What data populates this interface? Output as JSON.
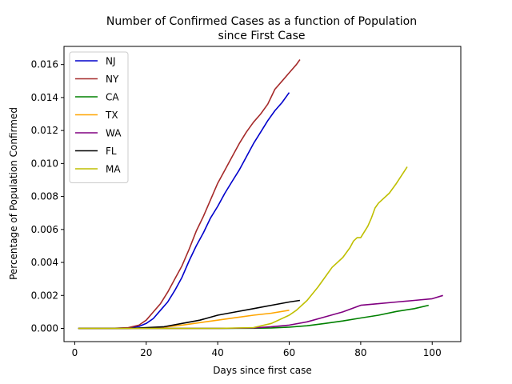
{
  "chart_data": {
    "type": "line",
    "title": "Number of Confirmed Cases as a function of Population",
    "subtitle": "since First Case",
    "xlabel": "Days since first case",
    "ylabel": "Percentage of Population Confirmed",
    "xlim": [
      -3,
      108
    ],
    "ylim": [
      -0.0008,
      0.0171
    ],
    "xticks": [
      0,
      20,
      40,
      60,
      80,
      100
    ],
    "xtick_labels": [
      "0",
      "20",
      "40",
      "60",
      "80",
      "100"
    ],
    "yticks": [
      0,
      0.002,
      0.004,
      0.006,
      0.008,
      0.01,
      0.012,
      0.014,
      0.016
    ],
    "ytick_labels": [
      "0.000",
      "0.002",
      "0.004",
      "0.006",
      "0.008",
      "0.010",
      "0.012",
      "0.014",
      "0.016"
    ],
    "grid": false,
    "legend": "top-left",
    "series": [
      {
        "name": "NJ",
        "color": "#0000cc",
        "x": [
          1,
          10,
          15,
          18,
          20,
          22,
          24,
          26,
          28,
          30,
          32,
          34,
          36,
          38,
          40,
          42,
          44,
          46,
          48,
          50,
          52,
          54,
          56,
          58,
          60
        ],
        "y": [
          0,
          0,
          3e-05,
          0.00012,
          0.0003,
          0.0006,
          0.0011,
          0.0016,
          0.0023,
          0.0031,
          0.0041,
          0.005,
          0.0058,
          0.0067,
          0.0074,
          0.0082,
          0.0089,
          0.0096,
          0.0104,
          0.0112,
          0.0119,
          0.0126,
          0.0132,
          0.0137,
          0.0143
        ]
      },
      {
        "name": "NY",
        "color": "#a52a2a",
        "x": [
          1,
          10,
          15,
          18,
          20,
          22,
          24,
          26,
          28,
          30,
          32,
          34,
          36,
          38,
          40,
          42,
          44,
          46,
          48,
          50,
          52,
          54,
          56,
          58,
          60,
          62,
          63
        ],
        "y": [
          0,
          0,
          5e-05,
          0.0002,
          0.0005,
          0.001,
          0.0015,
          0.0022,
          0.003,
          0.0038,
          0.0048,
          0.0059,
          0.0068,
          0.0078,
          0.0088,
          0.0096,
          0.0104,
          0.0112,
          0.0119,
          0.0125,
          0.013,
          0.0136,
          0.0145,
          0.015,
          0.0155,
          0.016,
          0.0163
        ]
      },
      {
        "name": "CA",
        "color": "#008000",
        "x": [
          1,
          20,
          40,
          50,
          55,
          60,
          65,
          70,
          75,
          80,
          85,
          90,
          95,
          99
        ],
        "y": [
          0,
          0,
          0,
          1e-05,
          3e-05,
          8e-05,
          0.00016,
          0.0003,
          0.00045,
          0.00063,
          0.0008,
          0.00103,
          0.0012,
          0.0014
        ]
      },
      {
        "name": "TX",
        "color": "#ffa500",
        "x": [
          1,
          15,
          20,
          25,
          30,
          35,
          40,
          45,
          50,
          55,
          60
        ],
        "y": [
          0,
          0,
          2e-05,
          8e-05,
          0.0002,
          0.00035,
          0.0005,
          0.00065,
          0.0008,
          0.00092,
          0.0011
        ]
      },
      {
        "name": "WA",
        "color": "#800080",
        "x": [
          1,
          40,
          50,
          55,
          60,
          65,
          70,
          75,
          80,
          85,
          90,
          95,
          100,
          103
        ],
        "y": [
          0,
          0,
          3e-05,
          0.0001,
          0.0002,
          0.0004,
          0.0007,
          0.001,
          0.0014,
          0.0015,
          0.0016,
          0.0017,
          0.0018,
          0.002
        ]
      },
      {
        "name": "FL",
        "color": "#000000",
        "x": [
          1,
          15,
          20,
          25,
          30,
          35,
          40,
          45,
          50,
          55,
          60,
          63
        ],
        "y": [
          0,
          0,
          5e-05,
          0.0001,
          0.0003,
          0.0005,
          0.0008,
          0.001,
          0.0012,
          0.0014,
          0.0016,
          0.0017
        ]
      },
      {
        "name": "MA",
        "color": "#bfbf00",
        "x": [
          1,
          40,
          50,
          55,
          60,
          62,
          65,
          68,
          70,
          72,
          75,
          77,
          78,
          79,
          80,
          82,
          83,
          84,
          85,
          88,
          90,
          93
        ],
        "y": [
          0,
          0,
          5e-05,
          0.0003,
          0.0008,
          0.0011,
          0.0017,
          0.0025,
          0.0031,
          0.0037,
          0.0043,
          0.0049,
          0.0053,
          0.0055,
          0.0055,
          0.0062,
          0.0067,
          0.0073,
          0.0076,
          0.0082,
          0.0088,
          0.0098
        ]
      }
    ]
  }
}
